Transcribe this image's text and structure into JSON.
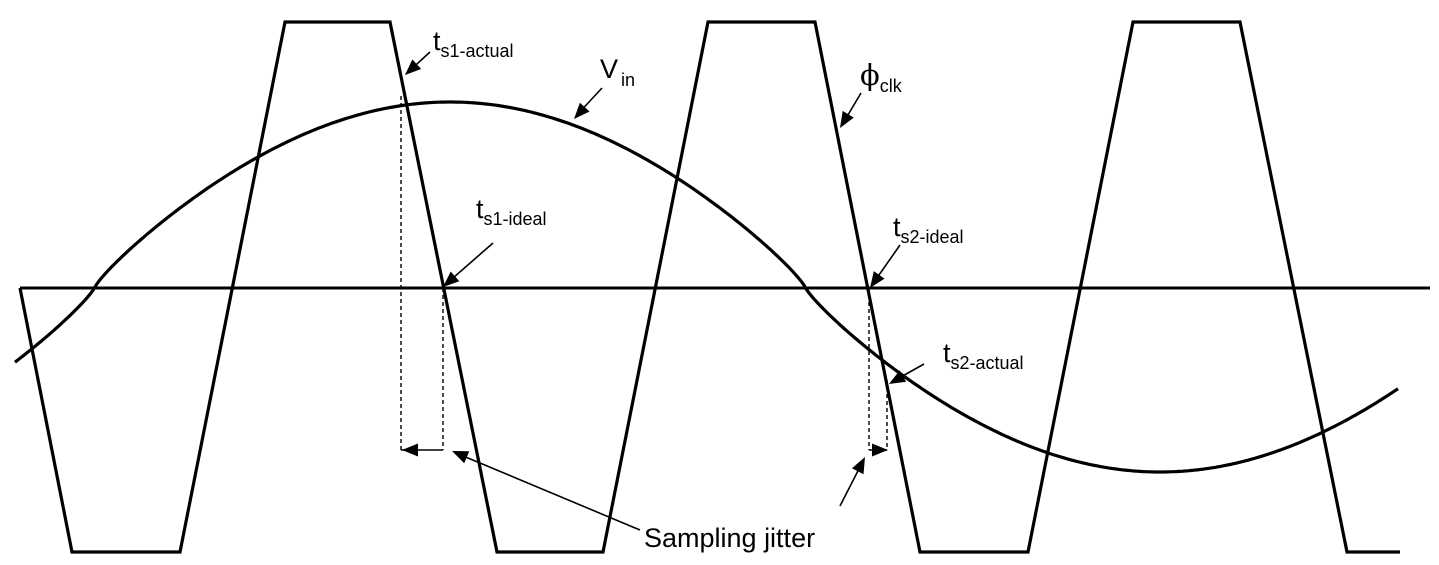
{
  "diagram": {
    "labels": {
      "ts1_actual": {
        "base": "t",
        "sub": "s1-actual"
      },
      "ts1_ideal": {
        "base": "t",
        "sub": "s1-ideal"
      },
      "ts2_ideal": {
        "base": "t",
        "sub": "s2-ideal"
      },
      "ts2_actual": {
        "base": "t",
        "sub": "s2-actual"
      },
      "vin": {
        "base": "V",
        "sub": "in"
      },
      "phi_clk": {
        "base": "ϕ",
        "sub": "clk"
      },
      "jitter": "Sampling jitter"
    },
    "colors": {
      "stroke": "#000000",
      "background": "#ffffff"
    }
  }
}
